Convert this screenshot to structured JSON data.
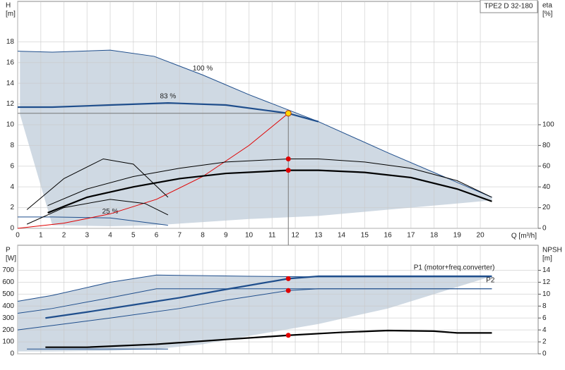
{
  "chart_data": [
    {
      "type": "line",
      "title": "TPE2 D 32-180",
      "y_label": "H",
      "y_unit": "[m]",
      "y2_label": "eta",
      "y2_unit": "[%]",
      "x_label": "Q [m³/h]",
      "xlim": [
        0,
        22.5
      ],
      "xticks": [
        0,
        1,
        2,
        3,
        4,
        5,
        6,
        7,
        8,
        9,
        10,
        11,
        12,
        13,
        14,
        15,
        16,
        17,
        18,
        19,
        20
      ],
      "ylim": [
        0,
        21.9
      ],
      "yticks": [
        0,
        2,
        4,
        6,
        8,
        10,
        12,
        14,
        16,
        18
      ],
      "y2lim": [
        0,
        219
      ],
      "y2ticks": [
        0,
        20,
        40,
        60,
        80,
        100
      ],
      "grid": true,
      "area": {
        "color": "#cfd9e3",
        "x": [
          0.1,
          1.5,
          4,
          5.9,
          8,
          10,
          13,
          16,
          20.5
        ],
        "upper": [
          17.1,
          17,
          17.2,
          16.6,
          14.8,
          12.9,
          10.3,
          7.3,
          3.0
        ],
        "lower": [
          11,
          0.3,
          0.2,
          0.3,
          0.6,
          0.9,
          1.2,
          1.8,
          2.7
        ]
      },
      "series": [
        {
          "name": "100 %",
          "color": "#1f4e8c",
          "style": "thin",
          "x": [
            0,
            1.5,
            4,
            5.9,
            8,
            10,
            13,
            16,
            20.5
          ],
          "values": [
            17.1,
            17,
            17.2,
            16.6,
            14.8,
            12.9,
            10.3,
            7.3,
            3.0
          ]
        },
        {
          "name": "83 %",
          "color": "#1f4e8c",
          "style": "thick",
          "x": [
            0,
            1.5,
            4,
            6.5,
            9,
            11.7,
            13
          ],
          "values": [
            11.7,
            11.7,
            11.9,
            12.1,
            11.9,
            11.1,
            10.3
          ]
        },
        {
          "name": "25 %",
          "color": "#1f4e8c",
          "style": "thin",
          "x": [
            0,
            1.5,
            4,
            6.5
          ],
          "values": [
            1.1,
            1.1,
            1.0,
            0.3
          ]
        },
        {
          "color": "#e00000",
          "style": "thin",
          "x": [
            0,
            2,
            4,
            6,
            8,
            10,
            11.7
          ],
          "values": [
            0,
            0.5,
            1.4,
            2.8,
            5,
            8,
            11.1
          ]
        },
        {
          "color": "#000000",
          "style": "thin",
          "axis": "y2",
          "x": [
            1.3,
            3,
            5,
            7,
            9,
            11.7,
            13,
            15,
            17,
            19,
            20.5
          ],
          "values": [
            22,
            38,
            50,
            58,
            64,
            67,
            67,
            64,
            58,
            46,
            30
          ]
        },
        {
          "color": "#000000",
          "style": "thick",
          "axis": "y2",
          "x": [
            1.3,
            3,
            5,
            7,
            9,
            11.7,
            13,
            15,
            17,
            19,
            20.5
          ],
          "values": [
            15,
            30,
            40,
            48,
            53,
            56,
            56,
            54,
            49,
            38,
            26
          ]
        },
        {
          "color": "#000000",
          "style": "thin",
          "axis": "y2",
          "x": [
            0.4,
            2,
            3.7,
            5,
            6.5
          ],
          "values": [
            18,
            48,
            67,
            62,
            30
          ]
        },
        {
          "color": "#000000",
          "style": "thin",
          "axis": "y2",
          "x": [
            0.4,
            2,
            4,
            5.5,
            6.5
          ],
          "values": [
            4,
            20,
            28,
            24,
            13
          ]
        }
      ],
      "duty_point": {
        "x": 11.7,
        "y": 11.1,
        "color": "#ffd700"
      },
      "markers": [
        {
          "x": 11.7,
          "value": 67,
          "axis": "y2",
          "color": "#e00000"
        },
        {
          "x": 11.7,
          "value": 56,
          "axis": "y2",
          "color": "#e00000"
        }
      ]
    },
    {
      "type": "line",
      "y_label": "P",
      "y_unit": "[W]",
      "y2_label": "NPSH",
      "y2_unit": "[m]",
      "ylim": [
        0,
        910
      ],
      "yticks": [
        0,
        100,
        200,
        300,
        400,
        500,
        600,
        700
      ],
      "y2lim": [
        0,
        18.2
      ],
      "y2ticks": [
        0,
        2,
        4,
        6,
        8,
        10,
        12,
        14
      ],
      "grid": true,
      "area": {
        "color": "#cfd9e3",
        "x": [
          0,
          1.5,
          4,
          6,
          8,
          10,
          13,
          16,
          20.5
        ],
        "upper": [
          440,
          490,
          600,
          660,
          655,
          650,
          650,
          650,
          650
        ],
        "lower": [
          20,
          20,
          25,
          40,
          80,
          150,
          250,
          380,
          650
        ]
      },
      "series": [
        {
          "color": "#1f4e8c",
          "style": "thin",
          "x": [
            0,
            1.5,
            4,
            6,
            8,
            10,
            13,
            16,
            20.5
          ],
          "values": [
            440,
            490,
            600,
            660,
            655,
            650,
            645,
            645,
            645
          ]
        },
        {
          "name": "P1 (motor+freq.converter)",
          "color": "#1f4e8c",
          "style": "thick",
          "x": [
            1.2,
            3,
            5,
            7,
            9,
            11.7,
            13,
            16,
            20.5
          ],
          "values": [
            300,
            350,
            410,
            470,
            540,
            630,
            650,
            650,
            650
          ]
        },
        {
          "color": "#1f4e8c",
          "style": "thin",
          "x": [
            0,
            1.5,
            4,
            6,
            20.5
          ],
          "values": [
            340,
            380,
            470,
            545,
            545
          ]
        },
        {
          "name": "P2",
          "color": "#1f4e8c",
          "style": "thin",
          "x": [
            0,
            2,
            4,
            7,
            9,
            11.7,
            13,
            20.5
          ],
          "values": [
            200,
            250,
            300,
            380,
            450,
            530,
            545,
            545
          ]
        },
        {
          "color": "#1f4e8c",
          "style": "thin",
          "x": [
            0.4,
            6.5
          ],
          "values": [
            40,
            40
          ]
        },
        {
          "color": "#000000",
          "style": "thick",
          "axis": "y2",
          "x": [
            1.2,
            3,
            6,
            9,
            11.7,
            14,
            16,
            18,
            19,
            20.5
          ],
          "values": [
            1.1,
            1.1,
            1.6,
            2.4,
            3.1,
            3.6,
            3.9,
            3.8,
            3.5,
            3.5
          ]
        }
      ],
      "markers": [
        {
          "x": 11.7,
          "value": 630,
          "color": "#e00000"
        },
        {
          "x": 11.7,
          "value": 530,
          "color": "#e00000"
        },
        {
          "x": 11.7,
          "value": 3.1,
          "axis": "y2",
          "color": "#e00000"
        }
      ]
    }
  ]
}
